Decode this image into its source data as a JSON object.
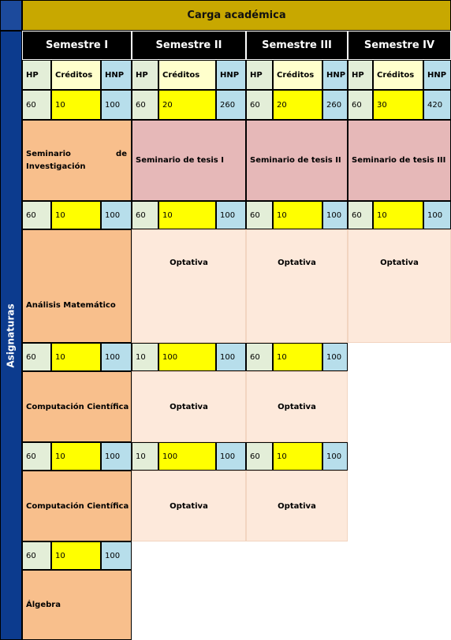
{
  "title": "Carga académica",
  "side_label": "Asignaturas",
  "semesters": [
    "Semestre I",
    "Semestre II",
    "Semestre III",
    "Semestre IV"
  ],
  "col_headers": {
    "hp": "HP",
    "cr": "Créditos",
    "hnp": "HNP"
  },
  "totals": [
    {
      "hp": "60",
      "cr": "10",
      "hnp": "100"
    },
    {
      "hp": "60",
      "cr": "20",
      "hnp": "260"
    },
    {
      "hp": "60",
      "cr": "20",
      "hnp": "260"
    },
    {
      "hp": "60",
      "cr": "30",
      "hnp": "420"
    }
  ],
  "rows": [
    {
      "values": [
        {
          "hp": "60",
          "cr": "10",
          "hnp": "100"
        },
        {
          "hp": "60",
          "cr": "10",
          "hnp": "100"
        },
        {
          "hp": "60",
          "cr": "10",
          "hnp": "100"
        },
        {
          "hp": "60",
          "cr": "10",
          "hnp": "100"
        }
      ],
      "subjects": [
        "Seminario de Investigación",
        "Seminario de tesis I",
        "Seminario de tesis II",
        "Seminario de tesis III"
      ],
      "subject_line1_a": "Seminario",
      "subject_line1_b": "de",
      "subject_line2": "Investigación"
    },
    {
      "values": [
        {
          "hp": "60",
          "cr": "10",
          "hnp": "100"
        },
        {
          "hp": "10",
          "cr": "100",
          "hnp": "100"
        },
        {
          "hp": "60",
          "cr": "10",
          "hnp": "100"
        }
      ],
      "subjects": [
        "Análisis Matemático",
        "Optativa",
        "Optativa",
        "Optativa"
      ]
    },
    {
      "values": [
        {
          "hp": "60",
          "cr": "10",
          "hnp": "100"
        },
        {
          "hp": "10",
          "cr": "100",
          "hnp": "100"
        },
        {
          "hp": "60",
          "cr": "10",
          "hnp": "100"
        }
      ],
      "subjects": [
        "Computación Científica",
        "Optativa",
        "Optativa"
      ]
    },
    {
      "values": [
        {
          "hp": "60",
          "cr": "10",
          "hnp": "100"
        }
      ],
      "subjects": [
        "Computación Científica",
        "Optativa",
        "Optativa"
      ]
    },
    {
      "subjects": [
        "Álgebra"
      ]
    }
  ],
  "colors": {
    "title_bg": "#c8a800",
    "side_bg": "#0c3b8e",
    "semester_bg": "#000000",
    "hp_bg": "#e3eed8",
    "credits_bg": "#ffff00",
    "hnp_bg": "#b7deeb",
    "subject_bg": "#f8bf8c",
    "thesis_bg": "#e6b8b8",
    "optativa_bg": "#fde9db"
  }
}
